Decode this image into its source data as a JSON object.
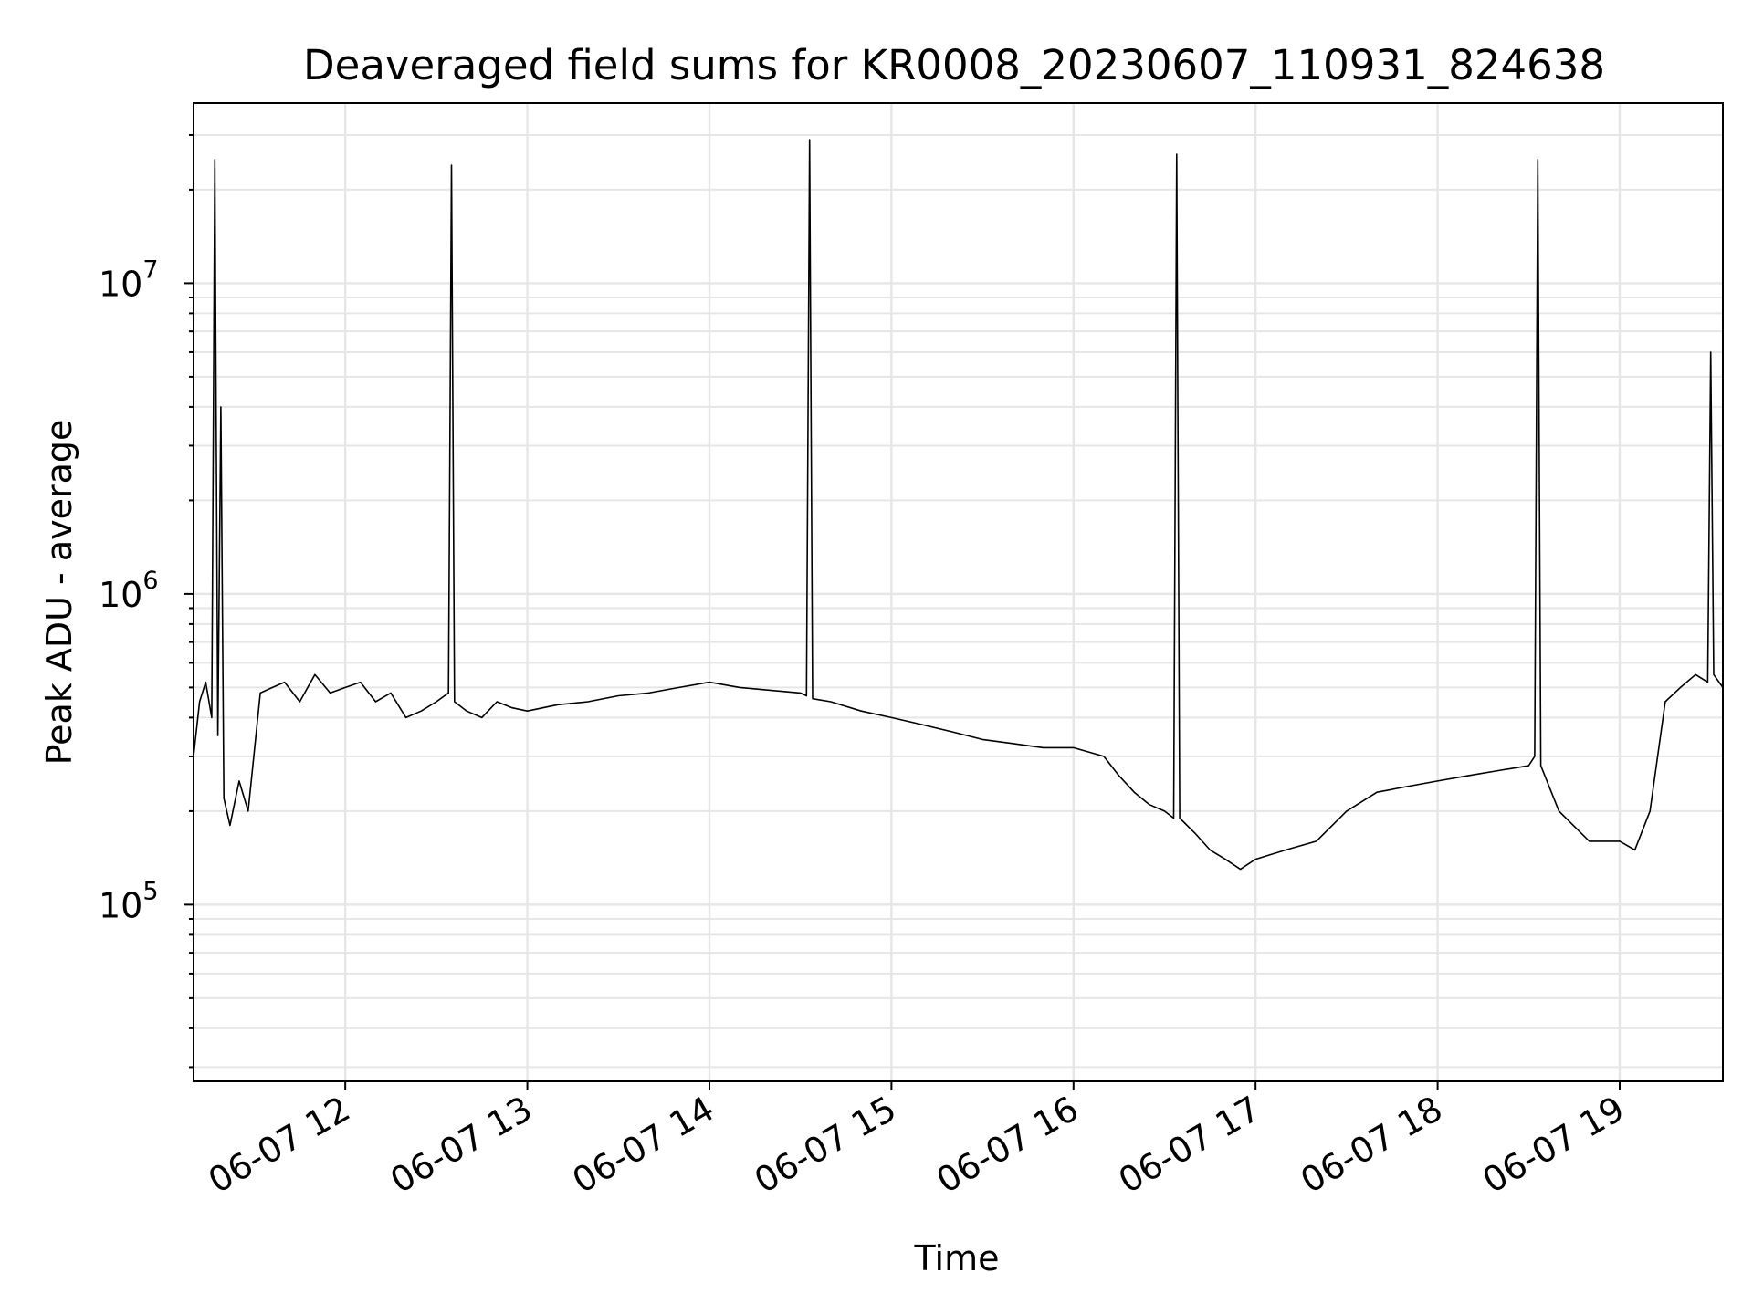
{
  "chart_data": {
    "type": "line",
    "title": "Deaveraged field sums for KR0008_20230607_110931_824638",
    "xlabel": "Time",
    "ylabel": "Peak ADU - average",
    "yscale": "log",
    "grid": true,
    "line_color": "#000000",
    "grid_color": "#e6e6e6",
    "xlim": [
      "2023-06-07T11:10",
      "2023-06-07T19:34"
    ],
    "ylim": [
      27000,
      38000000
    ],
    "xticks": [
      {
        "value": "2023-06-07T12:00",
        "label": "06-07 12"
      },
      {
        "value": "2023-06-07T13:00",
        "label": "06-07 13"
      },
      {
        "value": "2023-06-07T14:00",
        "label": "06-07 14"
      },
      {
        "value": "2023-06-07T15:00",
        "label": "06-07 15"
      },
      {
        "value": "2023-06-07T16:00",
        "label": "06-07 16"
      },
      {
        "value": "2023-06-07T17:00",
        "label": "06-07 17"
      },
      {
        "value": "2023-06-07T18:00",
        "label": "06-07 18"
      },
      {
        "value": "2023-06-07T19:00",
        "label": "06-07 19"
      }
    ],
    "yticks": [
      {
        "value": 100000,
        "base": "10",
        "exp": "5"
      },
      {
        "value": 1000000,
        "base": "10",
        "exp": "6"
      },
      {
        "value": 10000000,
        "base": "10",
        "exp": "7"
      }
    ],
    "series": [
      {
        "x": [
          "2023-06-07T11:10",
          "2023-06-07T11:12",
          "2023-06-07T11:14",
          "2023-06-07T11:16",
          "2023-06-07T11:17",
          "2023-06-07T11:18",
          "2023-06-07T11:19",
          "2023-06-07T11:20",
          "2023-06-07T11:22",
          "2023-06-07T11:25",
          "2023-06-07T11:28",
          "2023-06-07T11:32",
          "2023-06-07T11:36",
          "2023-06-07T11:40",
          "2023-06-07T11:45",
          "2023-06-07T11:50",
          "2023-06-07T11:55",
          "2023-06-07T12:00",
          "2023-06-07T12:05",
          "2023-06-07T12:10",
          "2023-06-07T12:15",
          "2023-06-07T12:20",
          "2023-06-07T12:25",
          "2023-06-07T12:30",
          "2023-06-07T12:34",
          "2023-06-07T12:35",
          "2023-06-07T12:36",
          "2023-06-07T12:40",
          "2023-06-07T12:45",
          "2023-06-07T12:50",
          "2023-06-07T12:55",
          "2023-06-07T13:00",
          "2023-06-07T13:10",
          "2023-06-07T13:20",
          "2023-06-07T13:30",
          "2023-06-07T13:40",
          "2023-06-07T13:50",
          "2023-06-07T14:00",
          "2023-06-07T14:10",
          "2023-06-07T14:20",
          "2023-06-07T14:30",
          "2023-06-07T14:32",
          "2023-06-07T14:33",
          "2023-06-07T14:34",
          "2023-06-07T14:40",
          "2023-06-07T14:50",
          "2023-06-07T15:00",
          "2023-06-07T15:10",
          "2023-06-07T15:20",
          "2023-06-07T15:30",
          "2023-06-07T15:40",
          "2023-06-07T15:50",
          "2023-06-07T16:00",
          "2023-06-07T16:10",
          "2023-06-07T16:15",
          "2023-06-07T16:20",
          "2023-06-07T16:25",
          "2023-06-07T16:30",
          "2023-06-07T16:33",
          "2023-06-07T16:34",
          "2023-06-07T16:35",
          "2023-06-07T16:40",
          "2023-06-07T16:45",
          "2023-06-07T16:50",
          "2023-06-07T16:55",
          "2023-06-07T17:00",
          "2023-06-07T17:10",
          "2023-06-07T17:20",
          "2023-06-07T17:30",
          "2023-06-07T17:40",
          "2023-06-07T17:50",
          "2023-06-07T18:00",
          "2023-06-07T18:10",
          "2023-06-07T18:20",
          "2023-06-07T18:30",
          "2023-06-07T18:32",
          "2023-06-07T18:33",
          "2023-06-07T18:34",
          "2023-06-07T18:40",
          "2023-06-07T18:50",
          "2023-06-07T19:00",
          "2023-06-07T19:05",
          "2023-06-07T19:10",
          "2023-06-07T19:15",
          "2023-06-07T19:20",
          "2023-06-07T19:25",
          "2023-06-07T19:29",
          "2023-06-07T19:30",
          "2023-06-07T19:31",
          "2023-06-07T19:34"
        ],
        "y": [
          300000,
          450000,
          520000,
          400000,
          25000000,
          350000,
          4000000,
          220000,
          180000,
          250000,
          200000,
          480000,
          500000,
          520000,
          450000,
          550000,
          480000,
          500000,
          520000,
          450000,
          480000,
          400000,
          420000,
          450000,
          480000,
          24000000,
          450000,
          420000,
          400000,
          450000,
          430000,
          420000,
          440000,
          450000,
          470000,
          480000,
          500000,
          520000,
          500000,
          490000,
          480000,
          470000,
          29000000,
          460000,
          450000,
          420000,
          400000,
          380000,
          360000,
          340000,
          330000,
          320000,
          320000,
          300000,
          260000,
          230000,
          210000,
          200000,
          190000,
          26000000,
          190000,
          170000,
          150000,
          140000,
          130000,
          140000,
          150000,
          160000,
          200000,
          230000,
          240000,
          250000,
          260000,
          270000,
          280000,
          300000,
          25000000,
          280000,
          200000,
          160000,
          160000,
          150000,
          200000,
          450000,
          500000,
          550000,
          520000,
          6000000,
          550000,
          500000
        ]
      }
    ]
  }
}
